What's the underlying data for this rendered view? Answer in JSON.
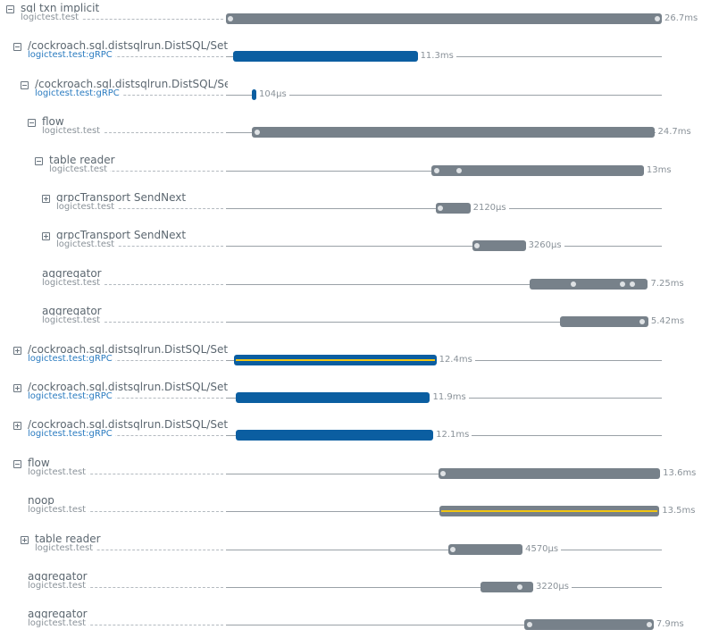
{
  "colors": {
    "gray": "#77818a",
    "blue": "#0b5ea1",
    "yellow": "#f2c511"
  },
  "timeline": {
    "total_ms": 26.7
  },
  "spans": [
    {
      "name": "sql txn implicit",
      "sub": "logictest.test",
      "depth": 0,
      "toggle": "collapse",
      "color": "gray",
      "start_ms": 0,
      "dur_ms": 26.7,
      "dur_label": "26.7ms",
      "events_ms": [
        0.3,
        26.4
      ]
    },
    {
      "name": "/cockroach.sql.distsqlrun.DistSQL/SetupFlow",
      "sub": "logictest.test:gRPC",
      "sub_blue": true,
      "depth": 1,
      "toggle": "collapse",
      "color": "blue",
      "start_ms": 0.44,
      "dur_ms": 11.3,
      "dur_label": "11.3ms",
      "events_ms": []
    },
    {
      "name": "/cockroach.sql.distsqlrun.DistSQL/SetupFlow",
      "sub": "logictest.test:gRPC",
      "sub_blue": true,
      "depth": 2,
      "toggle": "collapse",
      "color": "blue",
      "start_ms": 1.59,
      "dur_ms": 0.104,
      "dur_label": "104µs",
      "events_ms": []
    },
    {
      "name": "flow",
      "sub": "logictest.test",
      "depth": 3,
      "toggle": "collapse",
      "color": "gray",
      "start_ms": 1.59,
      "dur_ms": 24.7,
      "dur_label": "24.7ms",
      "events_ms": [
        1.9
      ]
    },
    {
      "name": "table reader",
      "sub": "logictest.test",
      "depth": 4,
      "toggle": "collapse",
      "color": "gray",
      "start_ms": 12.6,
      "dur_ms": 13,
      "dur_label": "13ms",
      "events_ms": [
        12.9,
        14.3
      ]
    },
    {
      "name": "grpcTransport SendNext",
      "sub": "logictest.test",
      "depth": 5,
      "toggle": "expand",
      "color": "gray",
      "start_ms": 12.85,
      "dur_ms": 2.12,
      "dur_label": "2120µs",
      "events_ms": [
        13.1
      ]
    },
    {
      "name": "grpcTransport SendNext",
      "sub": "logictest.test",
      "depth": 5,
      "toggle": "expand",
      "color": "gray",
      "start_ms": 15.1,
      "dur_ms": 3.26,
      "dur_label": "3260µs",
      "events_ms": [
        15.3
      ]
    },
    {
      "name": "aggregator",
      "sub": "logictest.test",
      "depth": 4,
      "toggle": null,
      "color": "gray",
      "start_ms": 18.6,
      "dur_ms": 7.25,
      "dur_label": "7.25ms",
      "events_ms": [
        21.3,
        24.3,
        24.9
      ]
    },
    {
      "name": "aggregator",
      "sub": "logictest.test",
      "depth": 4,
      "toggle": null,
      "color": "gray",
      "start_ms": 20.45,
      "dur_ms": 5.42,
      "dur_label": "5.42ms",
      "events_ms": [
        25.5
      ]
    },
    {
      "name": "/cockroach.sql.distsqlrun.DistSQL/SetupFlow",
      "sub": "logictest.test:gRPC",
      "sub_blue": true,
      "depth": 1,
      "toggle": "expand",
      "color": "blue",
      "start_ms": 0.49,
      "dur_ms": 12.4,
      "dur_label": "12.4ms",
      "events_ms": [],
      "yellow_line": true
    },
    {
      "name": "/cockroach.sql.distsqlrun.DistSQL/SetupFlow",
      "sub": "logictest.test:gRPC",
      "sub_blue": true,
      "depth": 1,
      "toggle": "expand",
      "color": "blue",
      "start_ms": 0.6,
      "dur_ms": 11.9,
      "dur_label": "11.9ms",
      "events_ms": []
    },
    {
      "name": "/cockroach.sql.distsqlrun.DistSQL/SetupFlow",
      "sub": "logictest.test:gRPC",
      "sub_blue": true,
      "depth": 1,
      "toggle": "expand",
      "color": "blue",
      "start_ms": 0.6,
      "dur_ms": 12.1,
      "dur_label": "12.1ms",
      "events_ms": []
    },
    {
      "name": "flow",
      "sub": "logictest.test",
      "depth": 1,
      "toggle": "collapse",
      "color": "gray",
      "start_ms": 13.0,
      "dur_ms": 13.6,
      "dur_label": "13.6ms",
      "events_ms": [
        13.2
      ]
    },
    {
      "name": "noop",
      "sub": "logictest.test",
      "depth": 2,
      "toggle": null,
      "color": "gray",
      "start_ms": 13.05,
      "dur_ms": 13.5,
      "dur_label": "13.5ms",
      "events_ms": [],
      "yellow_line": true
    },
    {
      "name": "table reader",
      "sub": "logictest.test",
      "depth": 2,
      "toggle": "expand",
      "color": "gray",
      "start_ms": 13.6,
      "dur_ms": 4.57,
      "dur_label": "4570µs",
      "events_ms": [
        13.9
      ]
    },
    {
      "name": "aggregator",
      "sub": "logictest.test",
      "depth": 2,
      "toggle": null,
      "color": "gray",
      "start_ms": 15.6,
      "dur_ms": 3.22,
      "dur_label": "3220µs",
      "events_ms": [
        18.0
      ]
    },
    {
      "name": "aggregator",
      "sub": "logictest.test",
      "depth": 2,
      "toggle": null,
      "color": "gray",
      "start_ms": 18.3,
      "dur_ms": 7.9,
      "dur_label": "7.9ms",
      "events_ms": [
        18.6,
        26.0
      ]
    }
  ]
}
